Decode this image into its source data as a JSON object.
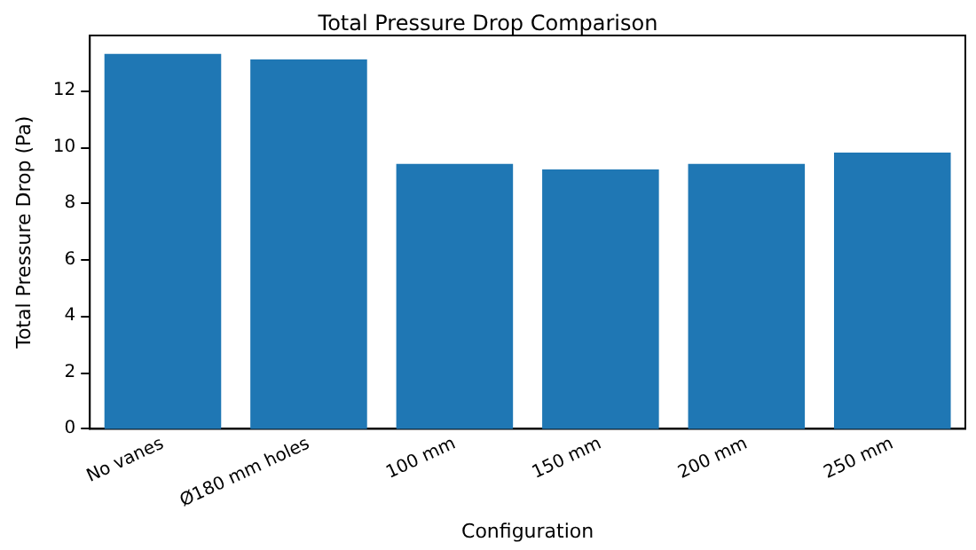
{
  "chart_data": {
    "type": "bar",
    "title": "Total Pressure Drop Comparison",
    "xlabel": "Configuration",
    "ylabel": "Total Pressure Drop (Pa)",
    "categories": [
      "No vanes",
      "Ø180 mm holes",
      "100 mm",
      "150 mm",
      "200 mm",
      "250 mm"
    ],
    "values": [
      13.3,
      13.1,
      9.4,
      9.2,
      9.4,
      9.8
    ],
    "color": "#1f77b4",
    "ylim": [
      0,
      13.95
    ],
    "yticks": [
      0,
      2,
      4,
      6,
      8,
      10,
      12
    ],
    "grid": false
  }
}
